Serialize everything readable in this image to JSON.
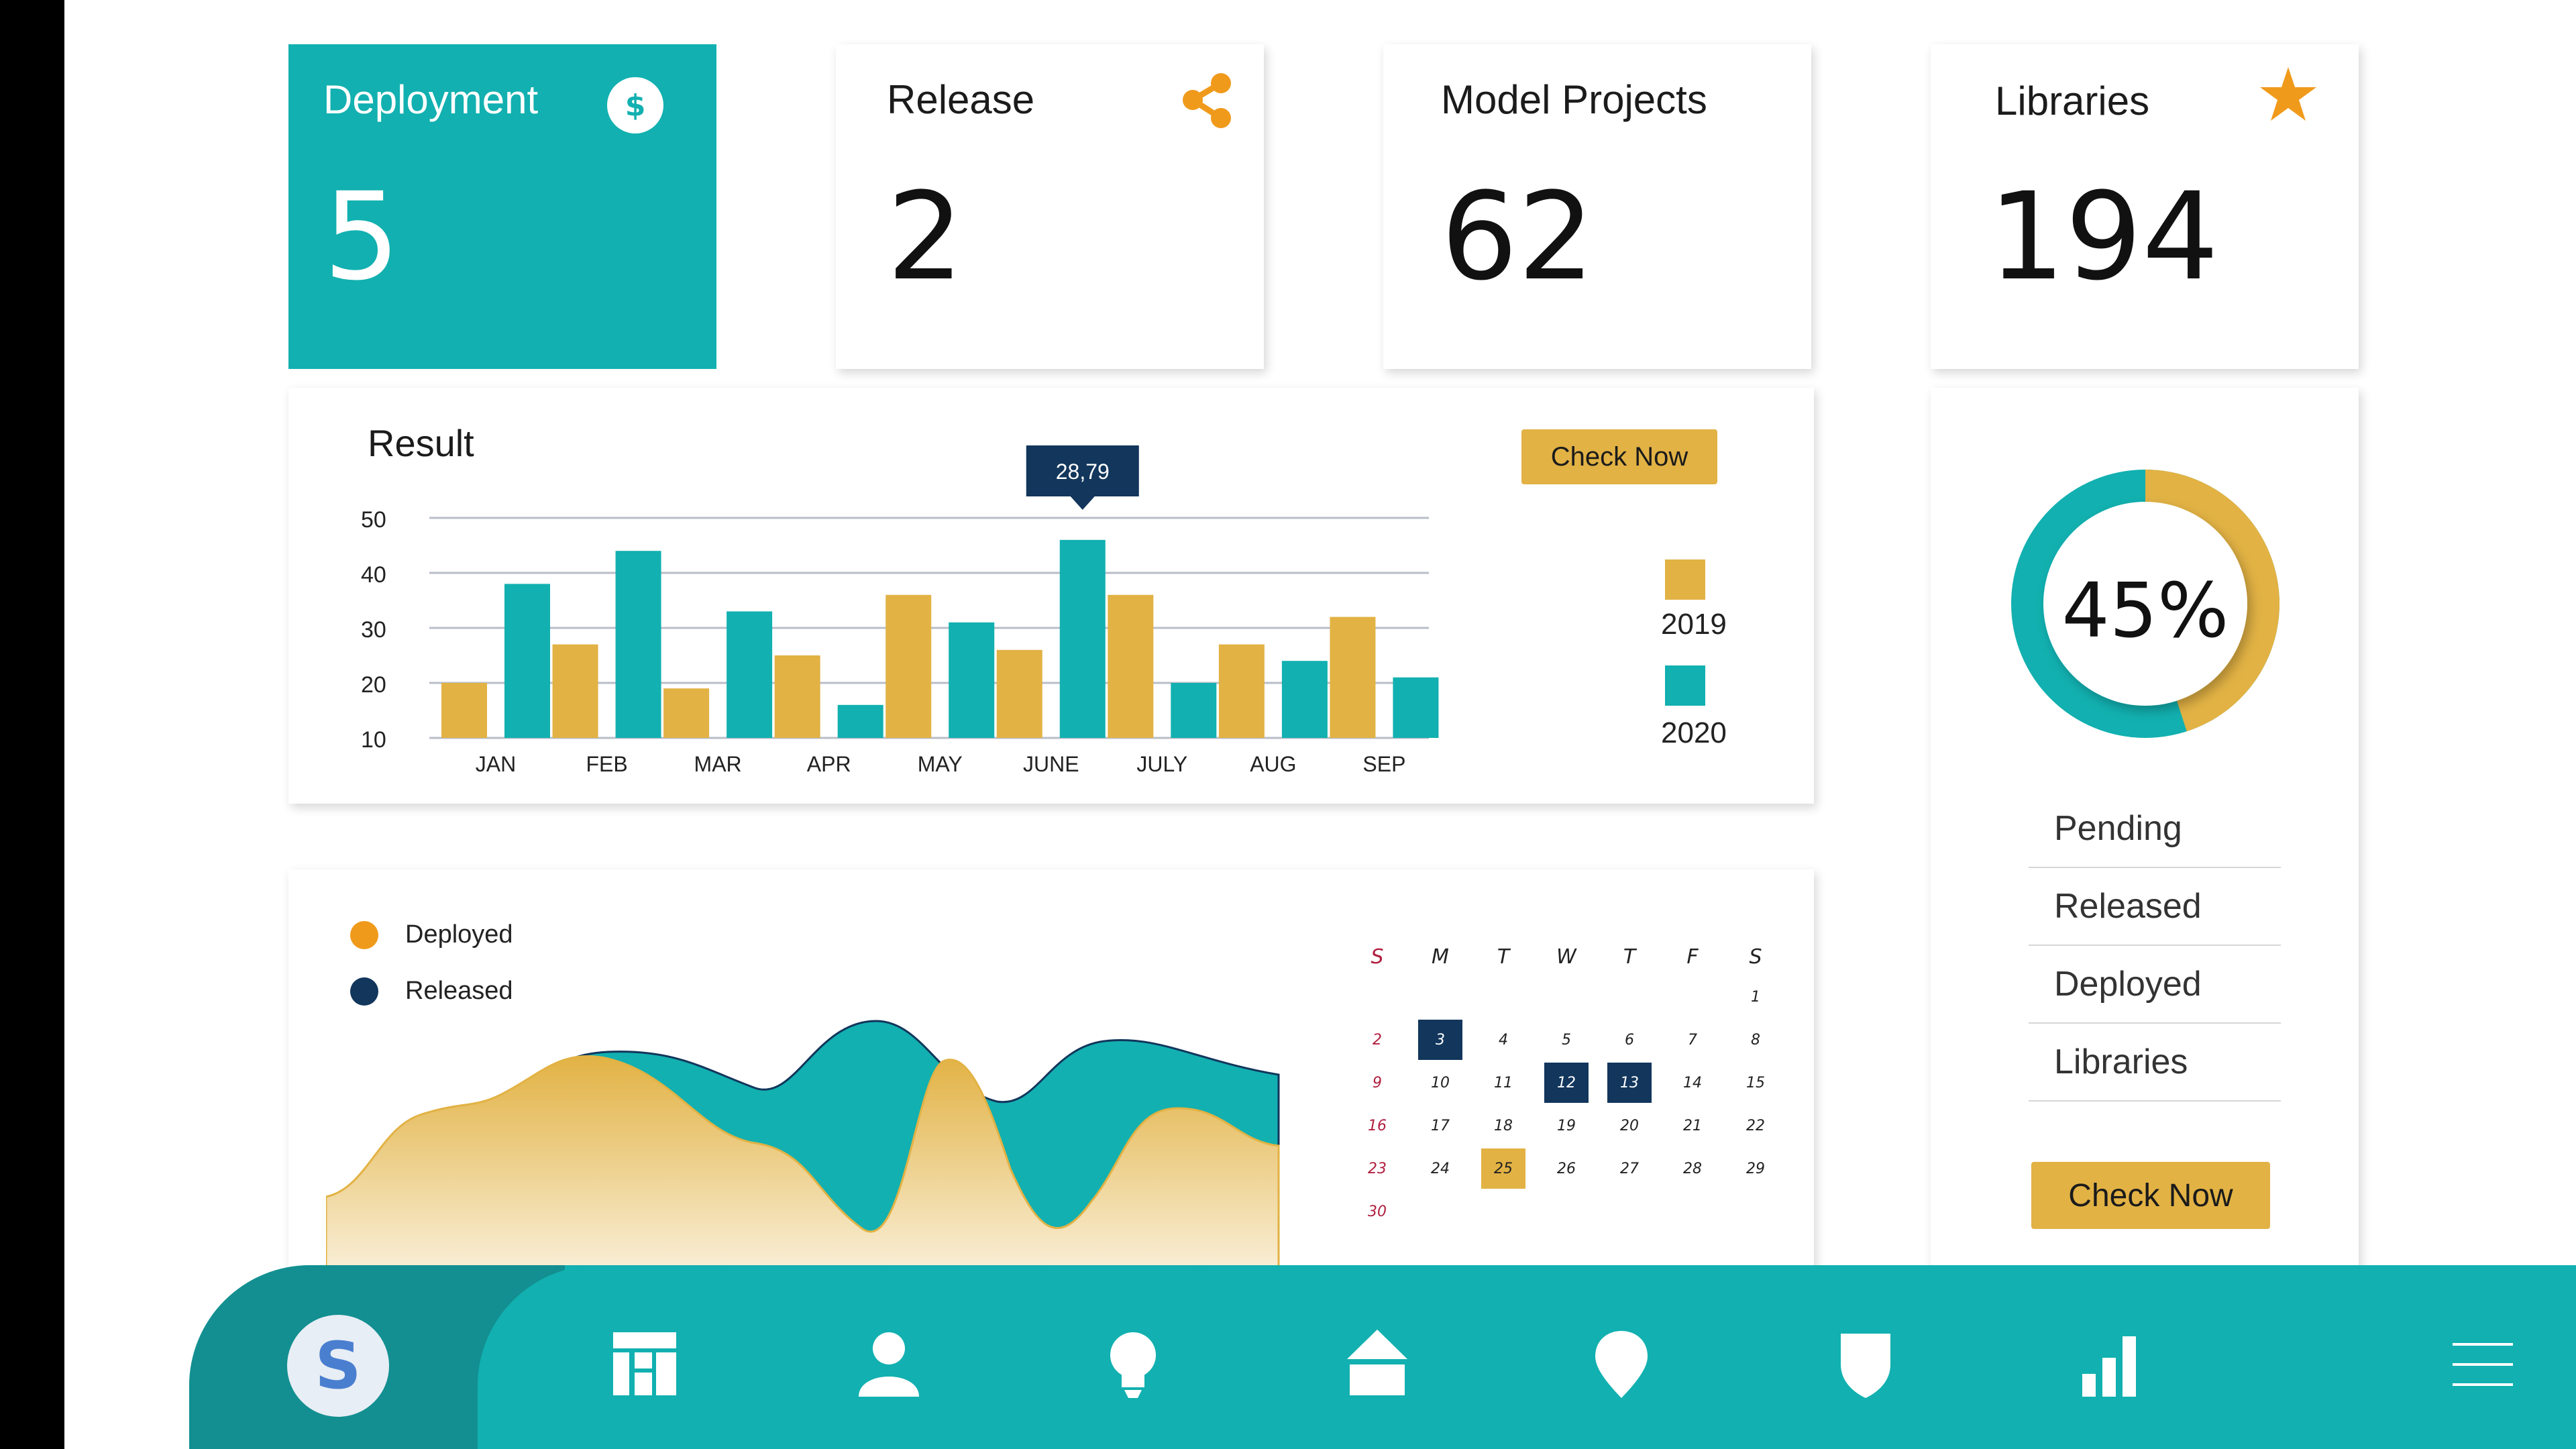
{
  "stats": [
    {
      "title": "Deployment",
      "value": "5",
      "icon": "dollar-icon"
    },
    {
      "title": "Release",
      "value": "2",
      "icon": "share-icon"
    },
    {
      "title": "Model Projects",
      "value": "62",
      "icon": ""
    },
    {
      "title": "Libraries",
      "value": "194",
      "icon": "star-icon"
    }
  ],
  "result": {
    "title": "Result",
    "button_label": "Check Now",
    "tooltip": "28,79"
  },
  "colors": {
    "teal": "#12b0b0",
    "teal_dark": "#138f91",
    "gold": "#e2b244",
    "orange": "#f09a1c",
    "navy": "#12365c",
    "sunday_red": "#b02040"
  },
  "chart_data": [
    {
      "type": "bar",
      "title": "Result",
      "categories": [
        "JAN",
        "FEB",
        "MAR",
        "APR",
        "MAY",
        "JUNE",
        "JULY",
        "AUG",
        "SEP"
      ],
      "series": [
        {
          "name": "2019",
          "color": "#e2b244",
          "values": [
            20,
            27,
            19,
            25,
            36,
            26,
            36,
            27,
            32
          ]
        },
        {
          "name": "2020",
          "color": "#12b0b0",
          "values": [
            38,
            44,
            33,
            16,
            31,
            46,
            20,
            24,
            21
          ]
        }
      ],
      "yticks": [
        10,
        20,
        30,
        40,
        50
      ],
      "ylim": [
        10,
        50
      ],
      "grid": true,
      "legend": "right"
    },
    {
      "type": "pie",
      "center_label": "45%",
      "values": [
        45,
        55
      ],
      "colors": [
        "#e2b244",
        "#12b0b0"
      ]
    },
    {
      "type": "area",
      "series": [
        {
          "name": "Deployed",
          "color": "#f09a1c"
        },
        {
          "name": "Released",
          "color": "#12365c"
        }
      ],
      "legend": "top-left"
    }
  ],
  "donut_panel": {
    "items": [
      "Pending",
      "Released",
      "Deployed",
      "Libraries"
    ],
    "button_label": "Check Now"
  },
  "area_legend": [
    {
      "label": "Deployed",
      "color": "#f09a1c"
    },
    {
      "label": "Released",
      "color": "#12365c"
    }
  ],
  "calendar": {
    "days": [
      "S",
      "M",
      "T",
      "W",
      "T",
      "F",
      "S"
    ],
    "weeks": [
      [
        "",
        "",
        "",
        "",
        "",
        "",
        "1"
      ],
      [
        "2",
        "3",
        "4",
        "5",
        "6",
        "7",
        "8"
      ],
      [
        "9",
        "10",
        "11",
        "12",
        "13",
        "14",
        "15"
      ],
      [
        "16",
        "17",
        "18",
        "19",
        "20",
        "21",
        "22"
      ],
      [
        "23",
        "24",
        "25",
        "26",
        "27",
        "28",
        "29"
      ],
      [
        "30",
        "",
        "",
        "",
        "",
        "",
        ""
      ]
    ],
    "highlight_navy": [
      "3",
      "12",
      "13"
    ],
    "highlight_gold": [
      "25"
    ]
  },
  "navbar": {
    "avatar_letter": "S",
    "icons": [
      "dashboard-icon",
      "user-icon",
      "lightbulb-icon",
      "home-icon",
      "location-pin-icon",
      "shield-icon",
      "bar-chart-icon",
      "menu-icon"
    ]
  }
}
